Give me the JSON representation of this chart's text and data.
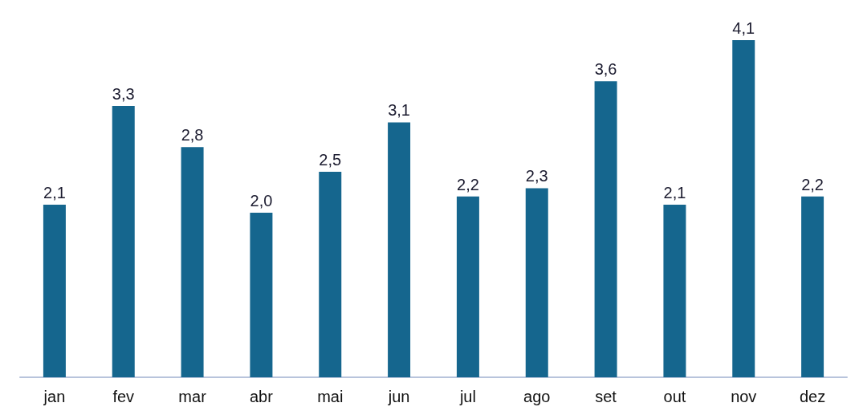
{
  "chart_data": {
    "type": "bar",
    "categories": [
      "jan",
      "fev",
      "mar",
      "abr",
      "mai",
      "jun",
      "jul",
      "ago",
      "set",
      "out",
      "nov",
      "dez"
    ],
    "values": [
      2.1,
      3.3,
      2.8,
      2.0,
      2.5,
      3.1,
      2.2,
      2.3,
      3.6,
      2.1,
      4.1,
      2.2
    ],
    "value_labels": [
      "2,1",
      "3,3",
      "2,8",
      "2,0",
      "2,5",
      "3,1",
      "2,2",
      "2,3",
      "3,6",
      "2,1",
      "4,1",
      "2,2"
    ],
    "color": "#15668e"
  }
}
